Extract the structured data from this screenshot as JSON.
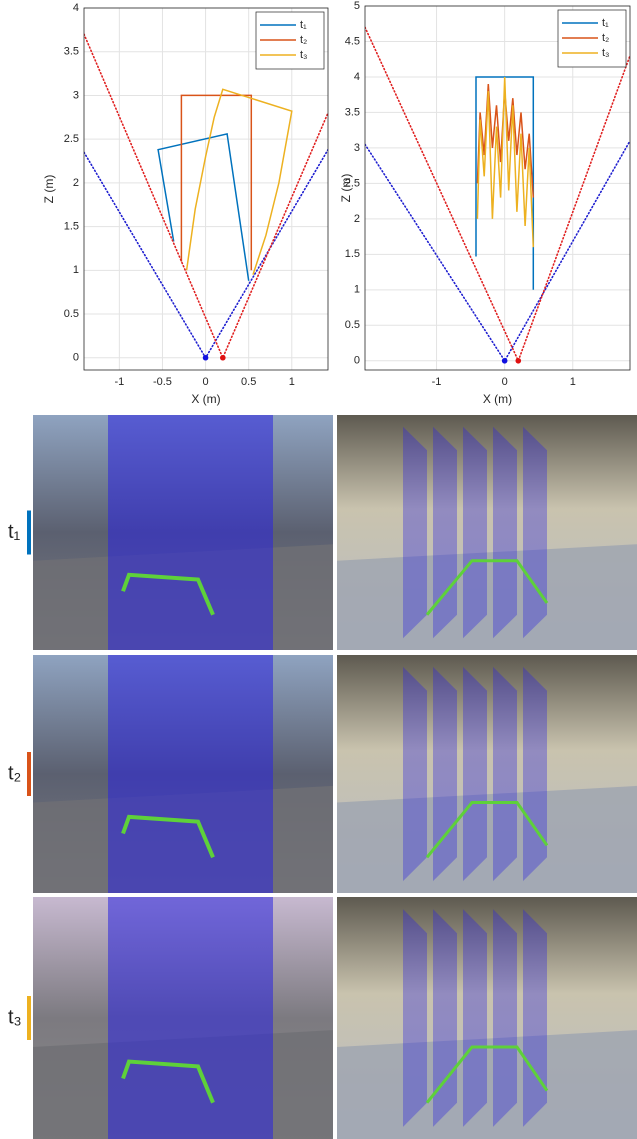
{
  "chart_data": [
    {
      "type": "line",
      "xlabel": "X (m)",
      "ylabel": "Z (m)",
      "xlim": [
        -1.41,
        1.42
      ],
      "ylim": [
        -0.14,
        4
      ],
      "xticks": [
        -1,
        -0.5,
        0,
        0.5,
        1
      ],
      "yticks": [
        0,
        0.5,
        1,
        1.5,
        2,
        2.5,
        3,
        3.5,
        4
      ],
      "grid": true,
      "legend": "upper right",
      "series": [
        {
          "name": "t₁",
          "color": "#0072bd",
          "x": [
            -0.37,
            -0.55,
            0.25,
            0.5
          ],
          "values": [
            1.33,
            2.38,
            2.56,
            0.88
          ]
        },
        {
          "name": "t₂",
          "color": "#d95319",
          "x": [
            -0.28,
            -0.28,
            0.53,
            0.53
          ],
          "values": [
            1.1,
            3.0,
            3.0,
            1.0
          ]
        },
        {
          "name": "t₃",
          "color": "#edb120",
          "x": [
            -0.22,
            -0.12,
            0.0,
            0.1,
            0.2,
            1.0,
            0.85,
            0.7,
            0.55
          ],
          "values": [
            1.0,
            1.7,
            2.3,
            2.75,
            3.07,
            2.82,
            2.0,
            1.4,
            0.95
          ]
        },
        {
          "color": "#2020d0",
          "line": "dotted",
          "x": [
            -1.41,
            0,
            1.42
          ],
          "values": [
            2.35,
            0,
            2.38
          ]
        },
        {
          "color": "#e02020",
          "line": "dotted",
          "x": [
            -1.41,
            0.2,
            1.42
          ],
          "values": [
            3.7,
            0,
            2.8
          ]
        },
        {
          "color": "#1010e0",
          "line": "dot",
          "x": [
            0
          ],
          "values": [
            0
          ]
        },
        {
          "color": "#e01010",
          "line": "dot",
          "x": [
            0.2
          ],
          "values": [
            0
          ]
        }
      ]
    },
    {
      "type": "line",
      "xlabel": "X (m)",
      "ylabel": "Z (m)",
      "xlim": [
        -2.05,
        1.84
      ],
      "ylim": [
        -0.13,
        5
      ],
      "xticks": [
        -1,
        0,
        1
      ],
      "yticks": [
        0,
        0.5,
        1,
        1.5,
        2,
        2.5,
        3,
        3.5,
        4,
        4.5,
        5
      ],
      "grid": true,
      "legend": "upper right",
      "series": [
        {
          "name": "t₁",
          "color": "#0072bd",
          "x": [
            -0.42,
            -0.42,
            0.42,
            0.42
          ],
          "values": [
            1.47,
            4.0,
            4.0,
            1.0
          ]
        },
        {
          "name": "t₂",
          "color": "#d95319",
          "x": [
            -0.4,
            -0.36,
            -0.3,
            -0.24,
            -0.18,
            -0.12,
            -0.06,
            0,
            0.06,
            0.12,
            0.18,
            0.24,
            0.3,
            0.36,
            0.42
          ],
          "values": [
            2.5,
            3.5,
            2.9,
            3.9,
            3.0,
            3.6,
            2.8,
            3.8,
            3.1,
            3.7,
            2.9,
            3.5,
            2.7,
            3.2,
            2.3
          ]
        },
        {
          "name": "t₃",
          "color": "#edb120",
          "x": [
            -0.4,
            -0.36,
            -0.3,
            -0.24,
            -0.18,
            -0.12,
            -0.06,
            0,
            0.06,
            0.12,
            0.18,
            0.24,
            0.3,
            0.36,
            0.42
          ],
          "values": [
            2.0,
            3.4,
            2.6,
            3.8,
            2.0,
            3.3,
            2.3,
            4.0,
            2.4,
            3.6,
            2.1,
            3.2,
            1.9,
            3.0,
            1.6
          ]
        },
        {
          "color": "#2020d0",
          "line": "dotted",
          "x": [
            -2.05,
            0,
            1.84
          ],
          "values": [
            3.05,
            0,
            3.1
          ]
        },
        {
          "color": "#e02020",
          "line": "dotted",
          "x": [
            -2.05,
            0.2,
            1.84
          ],
          "values": [
            4.7,
            0,
            4.3
          ]
        },
        {
          "color": "#1010e0",
          "line": "dot",
          "x": [
            0
          ],
          "values": [
            0
          ]
        },
        {
          "color": "#e01010",
          "line": "dot",
          "x": [
            0.2
          ],
          "values": [
            0
          ]
        }
      ]
    }
  ],
  "photo_grid": {
    "rows": [
      {
        "label": "t₁",
        "color": "#0072bd"
      },
      {
        "label": "t₂",
        "color": "#d95319"
      },
      {
        "label": "t₃",
        "color": "#edb120"
      }
    ]
  }
}
